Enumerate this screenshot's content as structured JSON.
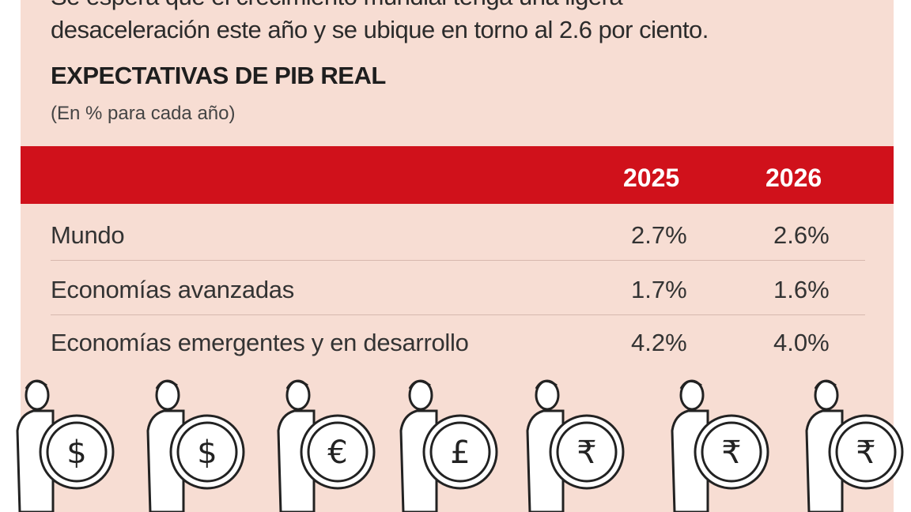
{
  "intro": {
    "line1": "Se espera que el crecimiento mundial tenga una ligera",
    "line2": "desaceleración este año y se ubique en torno al 2.6 por ciento."
  },
  "chart_data": {
    "type": "table",
    "title": "EXPECTATIVAS DE PIB REAL",
    "subtitle": "(En % para cada año)",
    "columns": [
      "2025",
      "2026"
    ],
    "rows": [
      {
        "label": "Mundo",
        "values": [
          "2.7%",
          "2.6%"
        ]
      },
      {
        "label": "Economías avanzadas",
        "values": [
          "1.7%",
          "1.6%"
        ]
      },
      {
        "label": "Economías emergentes y en desarrollo",
        "values": [
          "4.2%",
          "4.0%"
        ]
      }
    ]
  },
  "colors": {
    "header": "#d0111b",
    "background": "#f7ddd3"
  },
  "illustration": {
    "coins": [
      "$",
      "$",
      "€",
      "£",
      "₹",
      "₹",
      "₹"
    ]
  }
}
